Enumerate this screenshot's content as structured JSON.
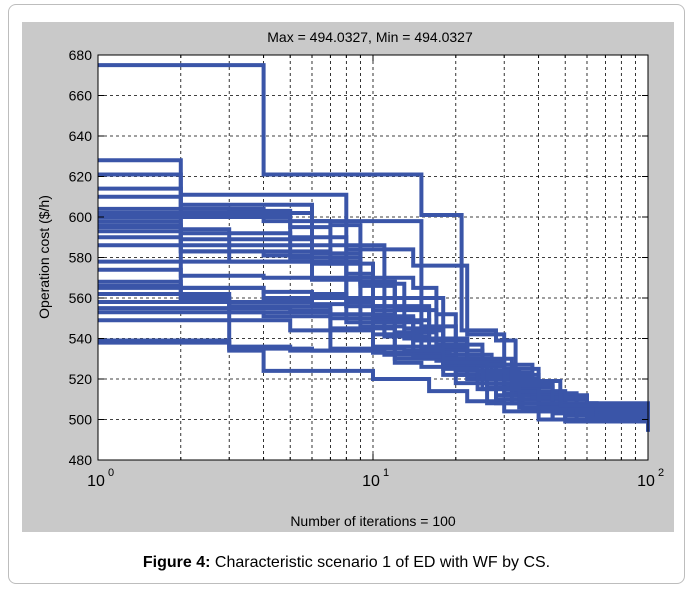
{
  "chart_data": {
    "type": "line",
    "title": "Max = 494.0327, Min = 494.0327",
    "xlabel": "Number of iterations = 100",
    "ylabel": "Operation cost ($/h)",
    "xscale": "log",
    "xlim": [
      1,
      100
    ],
    "ylim": [
      480,
      680
    ],
    "yticks": [
      480,
      500,
      520,
      540,
      560,
      580,
      600,
      620,
      640,
      660,
      680
    ],
    "xticks": [
      {
        "base": "10",
        "exp": "0"
      },
      {
        "base": "10",
        "exp": "1"
      },
      {
        "base": "10",
        "exp": "2"
      }
    ],
    "grid": true,
    "line_color": "#3a55a8",
    "series": [
      {
        "points": [
          [
            1,
            675
          ],
          [
            3,
            675
          ],
          [
            4,
            621
          ],
          [
            12,
            621
          ],
          [
            15,
            601
          ],
          [
            17,
            601
          ],
          [
            21,
            544
          ],
          [
            28,
            539
          ],
          [
            33,
            512
          ],
          [
            45,
            505
          ],
          [
            60,
            501
          ],
          [
            100,
            496
          ]
        ]
      },
      {
        "points": [
          [
            1,
            628
          ],
          [
            2,
            606
          ],
          [
            4,
            606
          ],
          [
            6,
            598
          ],
          [
            8,
            584
          ],
          [
            10,
            584
          ],
          [
            14,
            576
          ],
          [
            17,
            576
          ],
          [
            22,
            542
          ],
          [
            30,
            525
          ],
          [
            40,
            512
          ],
          [
            60,
            502
          ],
          [
            100,
            495
          ]
        ]
      },
      {
        "points": [
          [
            1,
            621
          ],
          [
            2,
            611
          ],
          [
            5,
            611
          ],
          [
            8,
            598
          ],
          [
            12,
            598
          ],
          [
            15,
            546
          ],
          [
            20,
            528
          ],
          [
            28,
            522
          ],
          [
            40,
            510
          ],
          [
            60,
            500
          ],
          [
            100,
            495
          ]
        ]
      },
      {
        "points": [
          [
            1,
            614
          ],
          [
            2,
            604
          ],
          [
            4,
            598
          ],
          [
            7,
            596
          ],
          [
            9,
            567
          ],
          [
            13,
            560
          ],
          [
            18,
            534
          ],
          [
            25,
            515
          ],
          [
            40,
            504
          ],
          [
            100,
            497
          ]
        ]
      },
      {
        "points": [
          [
            1,
            610
          ],
          [
            2,
            600
          ],
          [
            3,
            600
          ],
          [
            5,
            586
          ],
          [
            8,
            586
          ],
          [
            11,
            556
          ],
          [
            16,
            540
          ],
          [
            22,
            528
          ],
          [
            30,
            516
          ],
          [
            45,
            503
          ],
          [
            100,
            498
          ]
        ]
      },
      {
        "points": [
          [
            1,
            604
          ],
          [
            3,
            603
          ],
          [
            5,
            595
          ],
          [
            7,
            577
          ],
          [
            9,
            570
          ],
          [
            14,
            565
          ],
          [
            17,
            529
          ],
          [
            26,
            516
          ],
          [
            40,
            507
          ],
          [
            100,
            494
          ]
        ]
      },
      {
        "points": [
          [
            1,
            602
          ],
          [
            4,
            602
          ],
          [
            6,
            582
          ],
          [
            9,
            568
          ],
          [
            12,
            554
          ],
          [
            17,
            552
          ],
          [
            20,
            522
          ],
          [
            28,
            510
          ],
          [
            50,
            500
          ],
          [
            100,
            495
          ]
        ]
      },
      {
        "points": [
          [
            1,
            598
          ],
          [
            2,
            589
          ],
          [
            4,
            589
          ],
          [
            6,
            577
          ],
          [
            8,
            556
          ],
          [
            11,
            542
          ],
          [
            15,
            534
          ],
          [
            20,
            524
          ],
          [
            30,
            513
          ],
          [
            50,
            502
          ],
          [
            100,
            495
          ]
        ]
      },
      {
        "points": [
          [
            1,
            596
          ],
          [
            2,
            586
          ],
          [
            3,
            586
          ],
          [
            5,
            580
          ],
          [
            8,
            580
          ],
          [
            9,
            560
          ],
          [
            13,
            545
          ],
          [
            18,
            532
          ],
          [
            27,
            520
          ],
          [
            40,
            508
          ],
          [
            100,
            496
          ]
        ]
      },
      {
        "points": [
          [
            1,
            593
          ],
          [
            2,
            583
          ],
          [
            4,
            583
          ],
          [
            7,
            578
          ],
          [
            9,
            566
          ],
          [
            12,
            555
          ],
          [
            16,
            540
          ],
          [
            22,
            522
          ],
          [
            35,
            510
          ],
          [
            60,
            500
          ],
          [
            100,
            495
          ]
        ]
      },
      {
        "points": [
          [
            1,
            590
          ],
          [
            2,
            583
          ],
          [
            4,
            581
          ],
          [
            6,
            570
          ],
          [
            9,
            568
          ],
          [
            12,
            543
          ],
          [
            17,
            537
          ],
          [
            25,
            523
          ],
          [
            37,
            512
          ],
          [
            55,
            503
          ],
          [
            100,
            494
          ]
        ]
      },
      {
        "points": [
          [
            1,
            586
          ],
          [
            2,
            578
          ],
          [
            5,
            578
          ],
          [
            8,
            560
          ],
          [
            10,
            549
          ],
          [
            14,
            539
          ],
          [
            18,
            527
          ],
          [
            28,
            512
          ],
          [
            45,
            504
          ],
          [
            100,
            497
          ]
        ]
      },
      {
        "points": [
          [
            1,
            578
          ],
          [
            2,
            560
          ],
          [
            3,
            553
          ],
          [
            5,
            553
          ],
          [
            7,
            545
          ],
          [
            9,
            545
          ],
          [
            12,
            530
          ],
          [
            18,
            522
          ],
          [
            28,
            508
          ],
          [
            45,
            500
          ],
          [
            100,
            495
          ]
        ]
      },
      {
        "points": [
          [
            1,
            568
          ],
          [
            2,
            565
          ],
          [
            4,
            560
          ],
          [
            8,
            558
          ],
          [
            10,
            550
          ],
          [
            14,
            536
          ],
          [
            20,
            526
          ],
          [
            30,
            512
          ],
          [
            45,
            504
          ],
          [
            100,
            496
          ]
        ]
      },
      {
        "points": [
          [
            1,
            566
          ],
          [
            2,
            565
          ],
          [
            4,
            563
          ],
          [
            6,
            562
          ],
          [
            8,
            556
          ],
          [
            11,
            548
          ],
          [
            15,
            535
          ],
          [
            22,
            520
          ],
          [
            35,
            505
          ],
          [
            60,
            499
          ],
          [
            100,
            494
          ]
        ]
      },
      {
        "points": [
          [
            1,
            562
          ],
          [
            3,
            556
          ],
          [
            5,
            556
          ],
          [
            7,
            552
          ],
          [
            9,
            546
          ],
          [
            13,
            540
          ],
          [
            18,
            530
          ],
          [
            25,
            521
          ],
          [
            38,
            511
          ],
          [
            60,
            501
          ],
          [
            100,
            495
          ]
        ]
      },
      {
        "points": [
          [
            1,
            558
          ],
          [
            3,
            558
          ],
          [
            6,
            557
          ],
          [
            8,
            548
          ],
          [
            11,
            541
          ],
          [
            16,
            536
          ],
          [
            22,
            529
          ],
          [
            30,
            518
          ],
          [
            45,
            506
          ],
          [
            100,
            497
          ]
        ]
      },
      {
        "points": [
          [
            1,
            553
          ],
          [
            2,
            553
          ],
          [
            4,
            551
          ],
          [
            7,
            550
          ],
          [
            10,
            542
          ],
          [
            14,
            533
          ],
          [
            19,
            530
          ],
          [
            26,
            527
          ],
          [
            38,
            513
          ],
          [
            55,
            504
          ],
          [
            100,
            495
          ]
        ]
      },
      {
        "points": [
          [
            1,
            549
          ],
          [
            3,
            549
          ],
          [
            5,
            544
          ],
          [
            8,
            544
          ],
          [
            10,
            536
          ],
          [
            14,
            532
          ],
          [
            18,
            529
          ],
          [
            24,
            524
          ],
          [
            34,
            514
          ],
          [
            50,
            505
          ],
          [
            100,
            496
          ]
        ]
      },
      {
        "points": [
          [
            1,
            539
          ],
          [
            3,
            536
          ],
          [
            5,
            534
          ],
          [
            8,
            534
          ],
          [
            11,
            532
          ],
          [
            15,
            531
          ],
          [
            20,
            528
          ],
          [
            28,
            516
          ],
          [
            40,
            507
          ],
          [
            60,
            501
          ],
          [
            100,
            495
          ]
        ]
      },
      {
        "points": [
          [
            1,
            538
          ],
          [
            3,
            535
          ],
          [
            6,
            534
          ],
          [
            10,
            533
          ],
          [
            14,
            531
          ],
          [
            18,
            530
          ],
          [
            24,
            527
          ],
          [
            33,
            517
          ],
          [
            45,
            508
          ],
          [
            65,
            501
          ],
          [
            100,
            496
          ]
        ]
      },
      {
        "points": [
          [
            1,
            565
          ],
          [
            2,
            560
          ],
          [
            3,
            534
          ],
          [
            4,
            524
          ],
          [
            7,
            524
          ],
          [
            10,
            520
          ],
          [
            16,
            514
          ],
          [
            22,
            509
          ],
          [
            30,
            504
          ],
          [
            45,
            500
          ],
          [
            100,
            497
          ]
        ]
      },
      {
        "points": [
          [
            1,
            600
          ],
          [
            2,
            594
          ],
          [
            3,
            578
          ],
          [
            6,
            577
          ],
          [
            10,
            551
          ],
          [
            14,
            544
          ],
          [
            18,
            528
          ],
          [
            26,
            508
          ],
          [
            40,
            500
          ],
          [
            100,
            494
          ]
        ]
      },
      {
        "points": [
          [
            1,
            595
          ],
          [
            2,
            592
          ],
          [
            5,
            590
          ],
          [
            8,
            572
          ],
          [
            10,
            554
          ],
          [
            12,
            528
          ],
          [
            15,
            526
          ],
          [
            20,
            518
          ],
          [
            32,
            508
          ],
          [
            50,
            499
          ],
          [
            100,
            495
          ]
        ]
      },
      {
        "points": [
          [
            1,
            555
          ],
          [
            2,
            555
          ],
          [
            5,
            554
          ],
          [
            7,
            535
          ],
          [
            10,
            535
          ],
          [
            13,
            534
          ],
          [
            18,
            525
          ],
          [
            24,
            515
          ],
          [
            34,
            506
          ],
          [
            55,
            499
          ],
          [
            100,
            495
          ]
        ]
      },
      {
        "points": [
          [
            1,
            574
          ],
          [
            2,
            571
          ],
          [
            4,
            570
          ],
          [
            6,
            569
          ],
          [
            9,
            552
          ],
          [
            12,
            549
          ],
          [
            16,
            539
          ],
          [
            22,
            530
          ],
          [
            32,
            519
          ],
          [
            48,
            507
          ],
          [
            100,
            496
          ]
        ]
      }
    ]
  },
  "caption": {
    "label": "Figure 4:",
    "text": " Characteristic scenario 1 of ED with WF by CS."
  }
}
